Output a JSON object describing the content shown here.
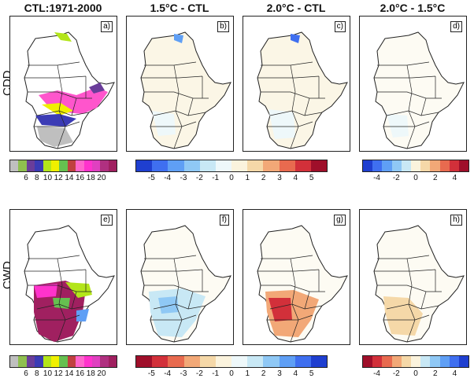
{
  "columns": [
    "CTL:1971-2000",
    "1.5°C - CTL",
    "2.0°C - CTL",
    "2.0°C - 1.5°C"
  ],
  "rows": [
    "CDD",
    "CWD"
  ],
  "panels": [
    "a)",
    "b)",
    "c)",
    "d)",
    "e)",
    "f)",
    "g)",
    "h)"
  ],
  "colorbars": {
    "ctl": {
      "ticks": [
        "6",
        "8",
        "10",
        "12",
        "14",
        "16",
        "18",
        "20"
      ],
      "colors": [
        "#bfbfbf",
        "#8fbf4f",
        "#6a3d9a",
        "#3b3bb5",
        "#b3e51a",
        "#f0f000",
        "#66c050",
        "#c04040",
        "#ff66cc",
        "#ff33cc",
        "#e040c0",
        "#b03080",
        "#a02060"
      ]
    },
    "diff_cdd": {
      "ticks": [
        "-5",
        "-4",
        "-3",
        "-2",
        "-1",
        "0",
        "1",
        "2",
        "3",
        "4",
        "5"
      ],
      "colors": [
        "#1f3fd0",
        "#3f6ff0",
        "#5f9ff5",
        "#8fc8f5",
        "#c8e8f5",
        "#eef8fa",
        "#fbf3dd",
        "#f5d8a8",
        "#f2a877",
        "#e86a4f",
        "#d2303a",
        "#9f0f2a"
      ]
    },
    "diff_cwd": {
      "ticks": [
        "-5",
        "-4",
        "-3",
        "-2",
        "-1",
        "0",
        "1",
        "2",
        "3",
        "4",
        "5"
      ],
      "colors": [
        "#9f0f2a",
        "#d2303a",
        "#e86a4f",
        "#f2a877",
        "#f5d8a8",
        "#fbf3dd",
        "#eef8fa",
        "#c8e8f5",
        "#8fc8f5",
        "#5f9ff5",
        "#3f6ff0",
        "#1f3fd0"
      ]
    },
    "d15_cdd": {
      "ticks": [
        "-4",
        "-2",
        "0",
        "2",
        "4"
      ],
      "colors": [
        "#1f3fd0",
        "#3f6ff0",
        "#5f9ff5",
        "#8fc8f5",
        "#c8e8f5",
        "#fbf3dd",
        "#f5d8a8",
        "#f2a877",
        "#e86a4f",
        "#d2303a",
        "#9f0f2a"
      ]
    },
    "d15_cwd": {
      "ticks": [
        "-4",
        "-2",
        "0",
        "2",
        "4"
      ],
      "colors": [
        "#9f0f2a",
        "#d2303a",
        "#e86a4f",
        "#f2a877",
        "#f5d8a8",
        "#fbf3dd",
        "#c8e8f5",
        "#8fc8f5",
        "#5f9ff5",
        "#3f6ff0",
        "#1f3fd0"
      ]
    }
  }
}
